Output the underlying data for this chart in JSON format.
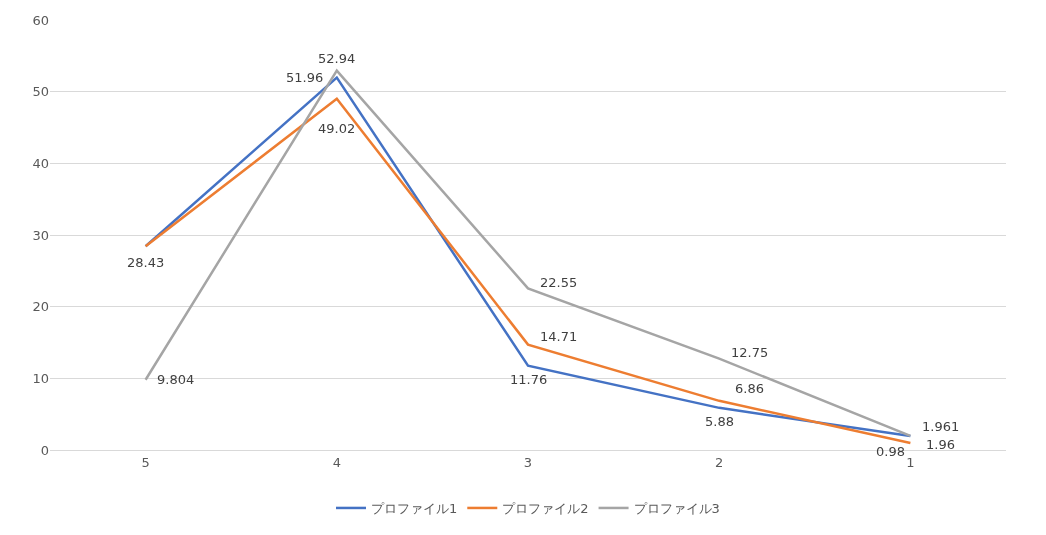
{
  "chart_data": {
    "type": "line",
    "categories": [
      "5",
      "4",
      "3",
      "2",
      "1"
    ],
    "series": [
      {
        "name": "プロファイル1",
        "color": "#4472c4",
        "values": [
          28.43,
          51.96,
          11.76,
          5.88,
          1.96
        ],
        "value_labels": [
          null,
          "51.96",
          "11.76",
          "5.88",
          "1.96"
        ]
      },
      {
        "name": "プロファイル2",
        "color": "#ed7d31",
        "values": [
          28.43,
          49.02,
          14.71,
          6.86,
          0.98
        ],
        "value_labels": [
          "28.43",
          "49.02",
          "14.71",
          "6.86",
          "0.98"
        ]
      },
      {
        "name": "プロファイル3",
        "color": "#a5a5a5",
        "values": [
          9.804,
          52.94,
          22.55,
          12.75,
          1.961
        ],
        "value_labels": [
          "9.804",
          "52.94",
          "22.55",
          "12.75",
          "1.961"
        ]
      }
    ],
    "ylim": [
      0,
      60
    ],
    "yticks": [
      0,
      10,
      20,
      30,
      40,
      50,
      60
    ],
    "grid": "y",
    "legend": "bottom",
    "marker": "none",
    "line_style": "solid"
  }
}
